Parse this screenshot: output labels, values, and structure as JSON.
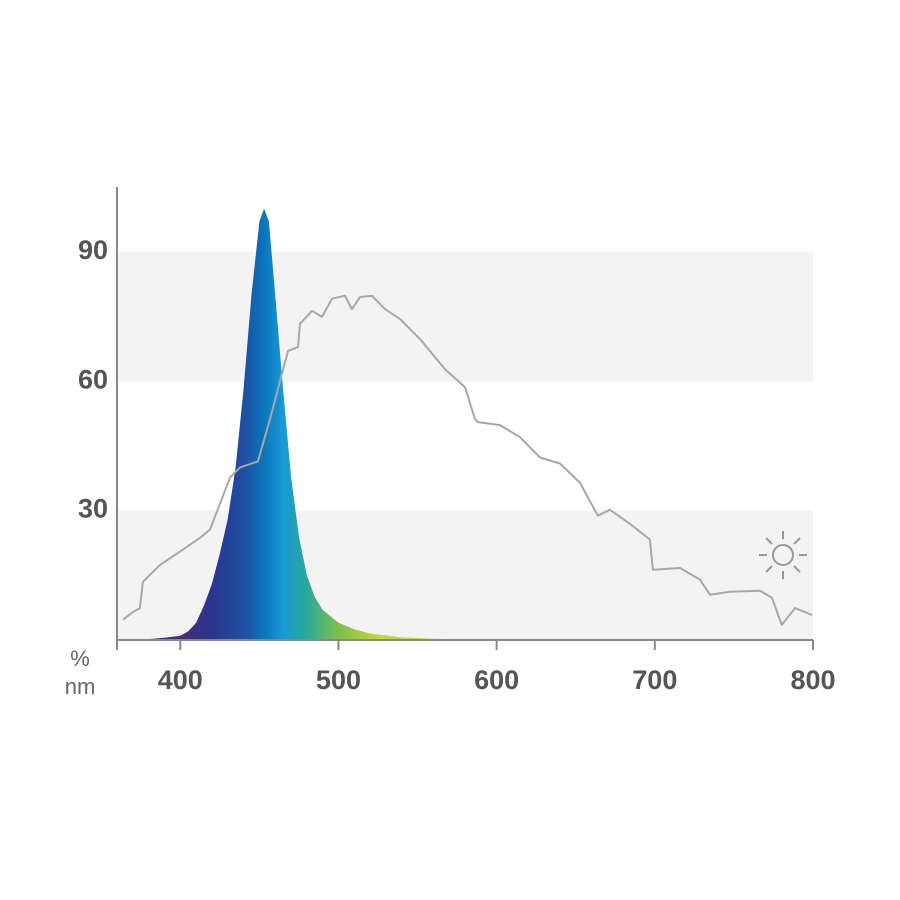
{
  "chart_data": {
    "type": "area",
    "ylabel": "%",
    "xlabel": "nm",
    "xlim": [
      360,
      800
    ],
    "ylim": [
      0,
      105
    ],
    "xticks": [
      400,
      500,
      600,
      700,
      800
    ],
    "yticks": [
      30,
      60,
      90
    ],
    "grid": "bands",
    "series": [
      {
        "style": "area",
        "color": "#0a72b8",
        "gradient": [
          {
            "at": 400,
            "color": "#4b2a7a"
          },
          {
            "at": 420,
            "color": "#2a3590"
          },
          {
            "at": 440,
            "color": "#1f4fa0"
          },
          {
            "at": 452,
            "color": "#0a72b8"
          },
          {
            "at": 465,
            "color": "#1a9ad6"
          },
          {
            "at": 480,
            "color": "#2aa89a"
          },
          {
            "at": 500,
            "color": "#7cc04a"
          },
          {
            "at": 525,
            "color": "#c2d83a"
          }
        ],
        "x": [
          360,
          380,
          390,
          400,
          405,
          410,
          415,
          420,
          425,
          430,
          435,
          440,
          445,
          450,
          453,
          456,
          460,
          465,
          470,
          475,
          480,
          485,
          490,
          500,
          510,
          520,
          540,
          560,
          600,
          650
        ],
        "values": [
          0,
          0.2,
          0.5,
          1,
          2,
          4,
          8,
          13,
          20,
          28,
          40,
          58,
          80,
          97,
          100,
          97,
          80,
          58,
          38,
          24,
          15,
          10,
          7,
          4,
          2.5,
          1.5,
          0.6,
          0.3,
          0.1,
          0
        ]
      },
      {
        "style": "line",
        "color": "#a8a8a8",
        "x": [
          363.8,
          370.1,
          374.5,
          376.4,
          387.2,
          399.8,
          412.5,
          418.8,
          431.5,
          437.8,
          449.1,
          456.7,
          468.1,
          474.4,
          475.7,
          483.3,
          489.6,
          495.9,
          504.1,
          508.5,
          513.6,
          521.2,
          529.4,
          538.9,
          551.5,
          567.3,
          580.0,
          586.3,
          588.2,
          602.1,
          614.7,
          627.4,
          640.0,
          652.5,
          664.0,
          671.6,
          684.3,
          696.9,
          698.8,
          715.9,
          728.5,
          734.8,
          747.5,
          766.5,
          774.0,
          780.3,
          788.6,
          799.4
        ],
        "values": [
          4.7,
          6.5,
          7.4,
          13.5,
          17.4,
          20.5,
          23.7,
          25.6,
          37.7,
          40,
          41.4,
          51.2,
          67,
          67.9,
          73.3,
          76.3,
          74.9,
          79.1,
          79.8,
          76.7,
          79.5,
          79.8,
          76.7,
          74.4,
          69.8,
          62.8,
          58.6,
          51.2,
          50.5,
          49.8,
          47,
          42.3,
          40.9,
          36.5,
          28.8,
          30.2,
          26.9,
          23.3,
          16.3,
          16.7,
          14,
          10.5,
          11.2,
          11.4,
          9.8,
          3.5,
          7.4,
          5.8
        ]
      }
    ]
  }
}
